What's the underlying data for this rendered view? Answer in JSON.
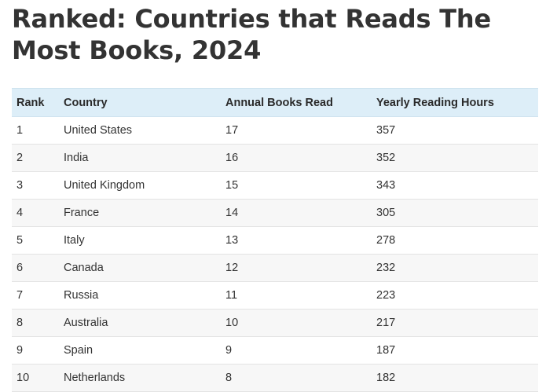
{
  "title": "Ranked: Countries that Reads The Most Books, 2024",
  "table": {
    "headers": [
      "Rank",
      "Country",
      "Annual Books Read",
      "Yearly Reading Hours"
    ],
    "rows": [
      [
        "1",
        "United States",
        "17",
        "357"
      ],
      [
        "2",
        "India",
        "16",
        "352"
      ],
      [
        "3",
        "United Kingdom",
        "15",
        "343"
      ],
      [
        "4",
        "France",
        "14",
        "305"
      ],
      [
        "5",
        "Italy",
        "13",
        "278"
      ],
      [
        "6",
        "Canada",
        "12",
        "232"
      ],
      [
        "7",
        "Russia",
        "11",
        "223"
      ],
      [
        "8",
        "Australia",
        "10",
        "217"
      ],
      [
        "9",
        "Spain",
        "9",
        "187"
      ],
      [
        "10",
        "Netherlands",
        "8",
        "182"
      ]
    ]
  }
}
